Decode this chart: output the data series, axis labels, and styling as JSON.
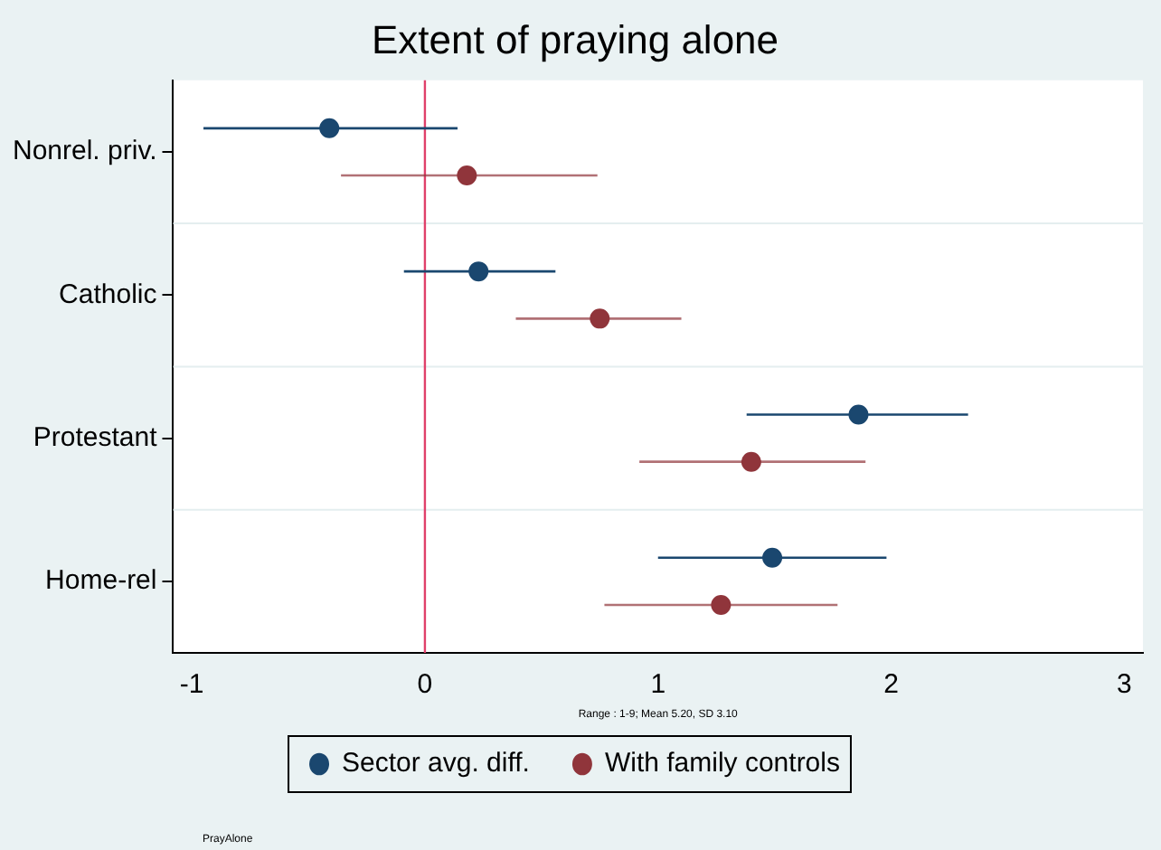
{
  "chart_data": {
    "type": "scatter",
    "orientation": "horizontal",
    "title": "Extent of praying alone",
    "categories": [
      "Nonrel. priv.",
      "Catholic",
      "Protestant",
      "Home-rel"
    ],
    "series": [
      {
        "name": "Sector avg. diff.",
        "color": "#1a476f",
        "values": [
          -0.41,
          0.23,
          1.86,
          1.49
        ],
        "errors": [
          [
            -0.95,
            0.14
          ],
          [
            -0.09,
            0.56
          ],
          [
            1.38,
            2.33
          ],
          [
            1.0,
            1.98
          ]
        ]
      },
      {
        "name": "With family controls",
        "color": "#90353b",
        "values": [
          0.18,
          0.75,
          1.4,
          1.27
        ],
        "errors": [
          [
            -0.36,
            0.74
          ],
          [
            0.39,
            1.1
          ],
          [
            0.92,
            1.89
          ],
          [
            0.77,
            1.77
          ]
        ]
      }
    ],
    "xlim": [
      -1.08,
      3.08
    ],
    "xticks": [
      -1,
      0,
      1,
      2,
      3
    ],
    "ref_lines": [
      {
        "axis": "x",
        "value": 0,
        "color": "#e0406a"
      }
    ],
    "annotations": [
      "Range : 1-9; Mean 5.20, SD 3.10",
      "PrayAlone"
    ],
    "grid": "y",
    "legend": "bottom",
    "marker": "circle"
  }
}
